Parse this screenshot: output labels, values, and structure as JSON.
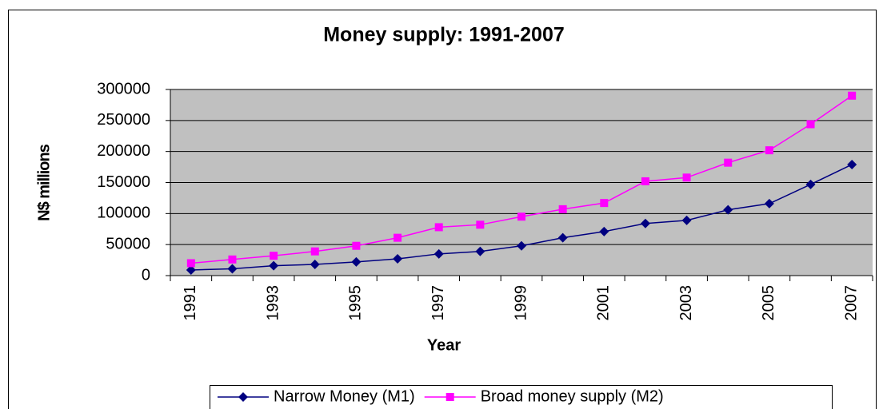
{
  "chart_data": {
    "type": "line",
    "title": "Money supply: 1991-2007",
    "x_label": "Year",
    "y_label": "N$ millions",
    "categories": [
      "1991",
      null,
      "1993",
      null,
      "1995",
      null,
      "1997",
      null,
      "1999",
      null,
      "2001",
      null,
      "2003",
      null,
      "2005",
      null,
      "2007"
    ],
    "series": [
      {
        "name": "Narrow Money (M1)",
        "color": "#000080",
        "marker": "diamond",
        "values": [
          9000,
          11000,
          16000,
          18000,
          22000,
          27000,
          35000,
          39000,
          48000,
          61000,
          71000,
          84000,
          89000,
          106000,
          116000,
          147000,
          179000
        ]
      },
      {
        "name": "Broad money supply (M2)",
        "color": "#ff00ff",
        "marker": "square",
        "values": [
          20000,
          26000,
          32000,
          39000,
          48000,
          61000,
          78000,
          82000,
          95000,
          107000,
          117000,
          152000,
          158000,
          182000,
          202000,
          244000,
          290000
        ]
      }
    ],
    "ylim": [
      0,
      300000
    ],
    "yticks": [
      0,
      50000,
      100000,
      150000,
      200000,
      250000,
      300000
    ],
    "grid": true,
    "legend": "bottom",
    "plot_background": "#c0c0c0"
  }
}
